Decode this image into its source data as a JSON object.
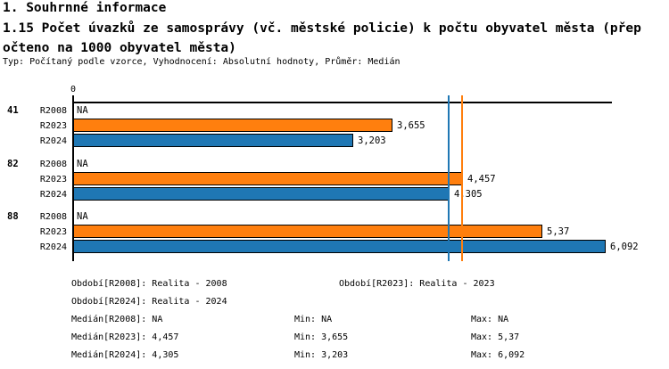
{
  "header": {
    "section_title": "1. Souhrnné informace",
    "indicator_title": "1.15 Počet úvazků ze samosprávy (vč. městské policie) k počtu obyvatel města (přepočteno na 1000 obyvatel města)",
    "meta": "Typ: Počítaný podle vzorce, Vyhodnocení: Absolutní hodnoty, Průměr: Medián"
  },
  "chart_data": {
    "type": "bar",
    "orientation": "horizontal",
    "title": "1.15 Počet úvazků ze samosprávy (vč. městské policie) k počtu obyvatel města (přepočteno na 1000 obyvatel města)",
    "xlabel": "",
    "ylabel": "",
    "x_axis": {
      "zero_label": "0",
      "min": 0,
      "max": 6.16,
      "gridlines": false
    },
    "na_label": "NA",
    "series_colors": {
      "R2023": "#ff7f0e",
      "R2024": "#1f77b4"
    },
    "groups": [
      {
        "label": "41",
        "bars": [
          {
            "series": "R2008",
            "value": null,
            "display": "NA",
            "color": null
          },
          {
            "series": "R2023",
            "value": 3.655,
            "display": "3,655",
            "color": "#ff7f0e"
          },
          {
            "series": "R2024",
            "value": 3.203,
            "display": "3,203",
            "color": "#1f77b4"
          }
        ]
      },
      {
        "label": "82",
        "bars": [
          {
            "series": "R2008",
            "value": null,
            "display": "NA",
            "color": null
          },
          {
            "series": "R2023",
            "value": 4.457,
            "display": "4,457",
            "color": "#ff7f0e"
          },
          {
            "series": "R2024",
            "value": 4.305,
            "display": "4,305",
            "color": "#1f77b4"
          }
        ]
      },
      {
        "label": "88",
        "bars": [
          {
            "series": "R2008",
            "value": null,
            "display": "NA",
            "color": null
          },
          {
            "series": "R2023",
            "value": 5.37,
            "display": "5,37",
            "color": "#ff7f0e"
          },
          {
            "series": "R2024",
            "value": 6.092,
            "display": "6,092",
            "color": "#1f77b4"
          }
        ]
      }
    ],
    "median_lines": [
      {
        "series": "R2023",
        "value": 4.457,
        "color": "#ff7f0e"
      },
      {
        "series": "R2024",
        "value": 4.305,
        "color": "#1f77b4"
      }
    ]
  },
  "legend": {
    "obdobi_r2008": "Období[R2008]: Realita - 2008",
    "obdobi_r2023": "Období[R2023]: Realita - 2023",
    "obdobi_r2024": "Období[R2024]: Realita - 2024",
    "median_r2008": "Medián[R2008]: NA",
    "min_r2008": "Min: NA",
    "max_r2008": "Max: NA",
    "median_r2023": "Medián[R2023]: 4,457",
    "min_r2023": "Min: 3,655",
    "max_r2023": "Max: 5,37",
    "median_r2024": "Medián[R2024]: 4,305",
    "min_r2024": "Min: 3,203",
    "max_r2024": "Max: 6,092"
  }
}
